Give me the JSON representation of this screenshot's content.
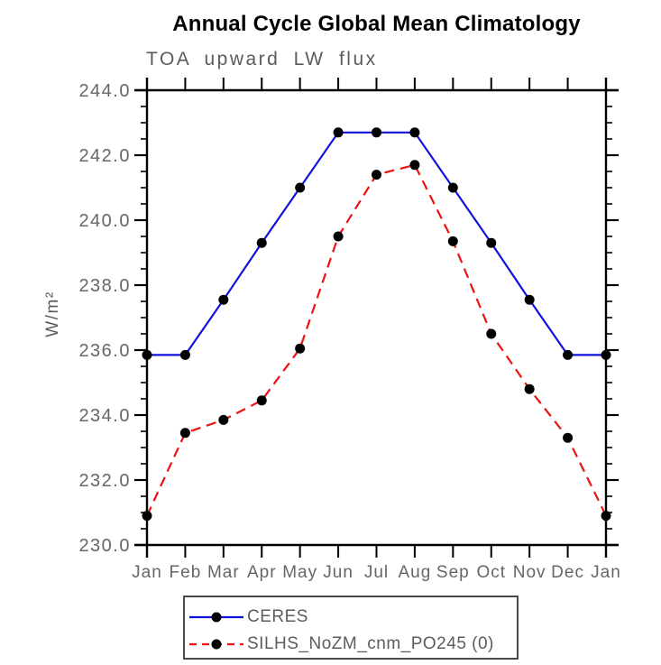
{
  "title": "Annual Cycle Global Mean Climatology",
  "subtitle": "TOA upward LW flux",
  "ylabel": "W/m²",
  "chart_data": {
    "type": "line",
    "title": "Annual Cycle Global Mean Climatology",
    "subtitle": "TOA upward LW flux",
    "ylabel": "W/m²",
    "xlabel": "",
    "grid": false,
    "legend_position": "bottom",
    "categories": [
      "Jan",
      "Feb",
      "Mar",
      "Apr",
      "May",
      "Jun",
      "Jul",
      "Aug",
      "Sep",
      "Oct",
      "Nov",
      "Dec",
      "Jan"
    ],
    "ylim": [
      230.0,
      244.0
    ],
    "y_major_step": 2.0,
    "y_minor_step": 0.5,
    "y_tick_labels": [
      "230.0",
      "232.0",
      "234.0",
      "236.0",
      "238.0",
      "240.0",
      "242.0",
      "244.0"
    ],
    "series": [
      {
        "name": "CERES",
        "color": "#1212e0",
        "line_style": "solid",
        "marker": "black-circle",
        "values": [
          235.85,
          235.85,
          237.55,
          239.3,
          241.0,
          242.7,
          242.7,
          242.7,
          241.0,
          239.3,
          237.55,
          235.85,
          235.85
        ]
      },
      {
        "name": "SILHS_NoZM_cnm_PO245 (0)",
        "color": "#ee1111",
        "line_style": "dashed",
        "marker": "black-circle",
        "values": [
          230.9,
          233.45,
          233.85,
          234.45,
          236.05,
          239.5,
          241.4,
          241.7,
          239.35,
          236.5,
          234.8,
          233.3,
          230.9
        ]
      }
    ]
  },
  "colors": {
    "axis": "#000000",
    "tick_label": "#666666",
    "marker": "#000000",
    "title": "#000000"
  }
}
